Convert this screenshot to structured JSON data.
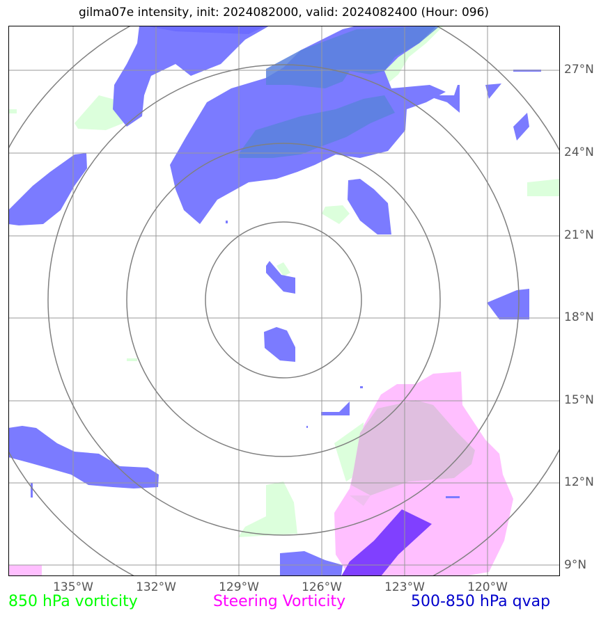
{
  "title": "gilma07e intensity, init: 2024082000, valid: 2024082400 (Hour: 096)",
  "lat_labels": [
    "27°N",
    "24°N",
    "21°N",
    "18°N",
    "15°N",
    "12°N",
    "9°N"
  ],
  "lon_labels": [
    "135°W",
    "132°W",
    "129°W",
    "126°W",
    "123°W",
    "120°W"
  ],
  "legend": {
    "vorticity_850": "850 hPa vorticity",
    "steering": "Steering Vorticity",
    "qvap": "500-850 hPa qvap"
  },
  "colors": {
    "vorticity_850": "#00ff00",
    "steering": "#ff00ff",
    "qvap": "#0000cc",
    "qvap_fill": "#7b7bff",
    "steering_fill": "#ffbfff",
    "vorticity_fill": "#dcffdc",
    "grid": "#999999",
    "rings": "#808080"
  }
}
